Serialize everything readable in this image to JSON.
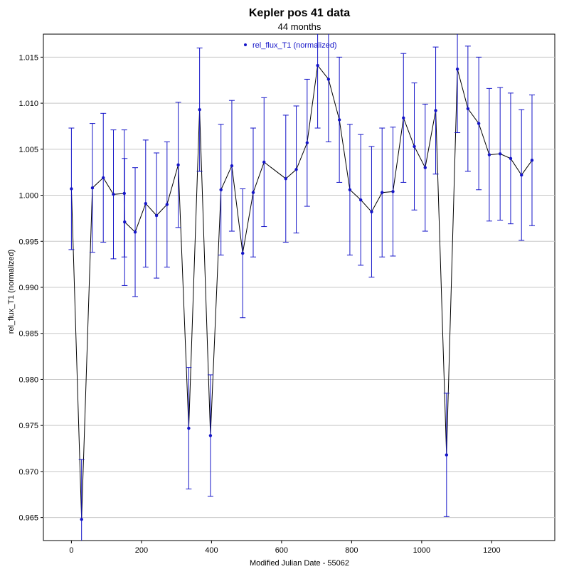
{
  "chart_data": {
    "type": "scatter",
    "title": "Kepler pos 41 data",
    "subtitle": "44 months",
    "xlabel": "Modified Julian Date - 55062",
    "ylabel": "rel_flux_T1 (normalized)",
    "xlim": [
      -80,
      1380
    ],
    "ylim": [
      0.9625,
      1.0175
    ],
    "x_ticks": [
      0,
      200,
      400,
      600,
      800,
      1000,
      1200
    ],
    "x_tick_labels": [
      "0",
      "200",
      "400",
      "600",
      "800",
      "1000",
      "1200"
    ],
    "y_ticks": [
      0.965,
      0.97,
      0.975,
      0.98,
      0.985,
      0.99,
      0.995,
      1.0,
      1.005,
      1.01,
      1.015
    ],
    "y_tick_labels": [
      "0.965",
      "0.970",
      "0.975",
      "0.980",
      "0.985",
      "0.990",
      "0.995",
      "1.000",
      "1.005",
      "1.010",
      "1.015"
    ],
    "grid": "horizontal",
    "legend": {
      "position": "top-center"
    },
    "series": [
      {
        "name": "rel_flux_T1 (normalized)",
        "color": "#1515c8",
        "line_color": "#000000",
        "x": [
          0,
          29,
          60,
          91,
          120,
          151,
          152,
          182,
          212,
          243,
          273,
          305,
          335,
          366,
          397,
          427,
          458,
          489,
          519,
          550,
          612,
          642,
          673,
          703,
          734,
          765,
          795,
          826,
          857,
          887,
          918,
          948,
          979,
          1010,
          1040,
          1071,
          1102,
          1132,
          1163,
          1193,
          1224,
          1254,
          1285,
          1315
        ],
        "y": [
          1.0007,
          0.9648,
          1.0008,
          1.0019,
          1.0001,
          1.0002,
          0.9971,
          0.996,
          0.9991,
          0.9978,
          0.999,
          1.0033,
          0.9747,
          1.0093,
          0.9739,
          1.0006,
          1.0032,
          0.9937,
          1.0003,
          1.0036,
          1.0018,
          1.0028,
          1.0057,
          1.0141,
          1.0126,
          1.0082,
          1.0006,
          0.9995,
          0.9982,
          1.0003,
          1.0004,
          1.0084,
          1.0053,
          1.003,
          1.0092,
          0.9718,
          1.0137,
          1.0094,
          1.0078,
          1.0044,
          1.0045,
          1.004,
          1.0022,
          1.0038
        ],
        "yerr": [
          0.0066,
          0.0065,
          0.007,
          0.007,
          0.007,
          0.0069,
          0.0069,
          0.007,
          0.0069,
          0.0068,
          0.0068,
          0.0068,
          0.0066,
          0.0067,
          0.0066,
          0.0071,
          0.0071,
          0.007,
          0.007,
          0.007,
          0.0069,
          0.0069,
          0.0069,
          0.0068,
          0.0068,
          0.0068,
          0.0071,
          0.0071,
          0.0071,
          0.007,
          0.007,
          0.007,
          0.0069,
          0.0069,
          0.0069,
          0.0067,
          0.0069,
          0.0068,
          0.0072,
          0.0072,
          0.0072,
          0.0071,
          0.0071,
          0.0071
        ]
      }
    ]
  }
}
